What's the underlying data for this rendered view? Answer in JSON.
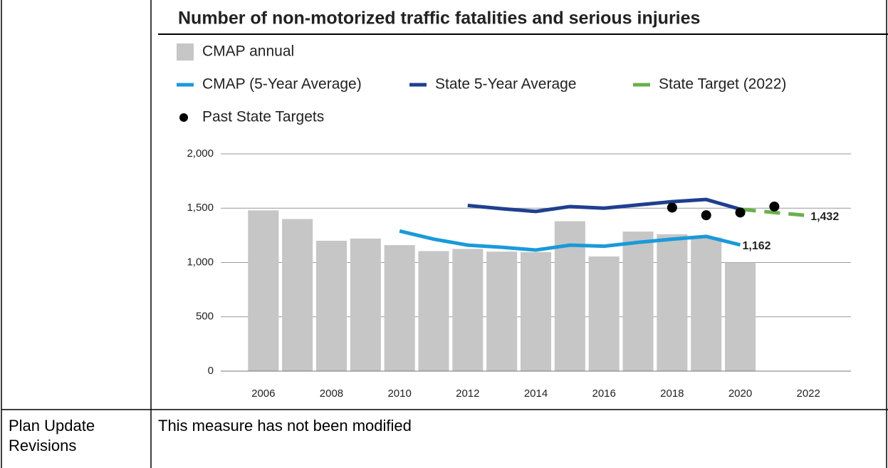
{
  "chart_data": {
    "type": "bar",
    "title": "Number of non-motorized traffic fatalities and serious injuries",
    "x": [
      2006,
      2007,
      2008,
      2009,
      2010,
      2011,
      2012,
      2013,
      2014,
      2015,
      2016,
      2017,
      2018,
      2019,
      2020,
      2021,
      2022
    ],
    "xlim": [
      2004.75,
      2023.25
    ],
    "xticks": [
      2006,
      2008,
      2010,
      2012,
      2014,
      2016,
      2018,
      2020,
      2022
    ],
    "ylim": [
      0,
      2000
    ],
    "yticks": [
      0,
      500,
      {
        "value": 1000,
        "label": "1,000"
      },
      {
        "value": 1500,
        "label": "1,500"
      },
      {
        "value": 2000,
        "label": "2,000"
      }
    ],
    "grid": true,
    "series": [
      {
        "name": "CMAP annual",
        "type": "bar",
        "color": "#c6c6c6",
        "values": [
          1480,
          1400,
          1200,
          1220,
          1160,
          1105,
          1125,
          1100,
          1095,
          1380,
          1055,
          1285,
          1260,
          1230,
          1000,
          null,
          null
        ]
      },
      {
        "name": "CMAP (5-Year Average)",
        "type": "line",
        "color": "#1a9ad9",
        "values": [
          null,
          null,
          null,
          null,
          1290,
          1215,
          1160,
          1140,
          1115,
          1160,
          1150,
          1185,
          1215,
          1240,
          1162,
          null,
          null
        ],
        "value_labels": [
          null,
          null,
          null,
          null,
          null,
          null,
          null,
          null,
          null,
          null,
          null,
          null,
          null,
          null,
          "1,162",
          null,
          null
        ]
      },
      {
        "name": "State 5-Year Average",
        "type": "line",
        "color": "#1f3f8f",
        "values": [
          null,
          null,
          null,
          null,
          null,
          null,
          1525,
          1495,
          1470,
          1515,
          1500,
          1530,
          1560,
          1580,
          1490,
          null,
          null
        ]
      },
      {
        "name": "State Target (2022)",
        "type": "dashed",
        "color": "#6ab04c",
        "values": [
          null,
          null,
          null,
          null,
          null,
          null,
          null,
          null,
          null,
          null,
          null,
          null,
          null,
          null,
          1490,
          1460,
          1432
        ],
        "value_labels": [
          null,
          null,
          null,
          null,
          null,
          null,
          null,
          null,
          null,
          null,
          null,
          null,
          null,
          null,
          null,
          null,
          "1,432"
        ]
      },
      {
        "name": "Past State Targets",
        "type": "scatter",
        "color": "#000000",
        "values": [
          null,
          null,
          null,
          null,
          null,
          null,
          null,
          null,
          null,
          null,
          null,
          null,
          1505,
          1435,
          1460,
          1515,
          null
        ]
      }
    ]
  },
  "table": {
    "rows": [
      [
        "Plan Update Revisions",
        "This measure has not been modified"
      ]
    ]
  }
}
